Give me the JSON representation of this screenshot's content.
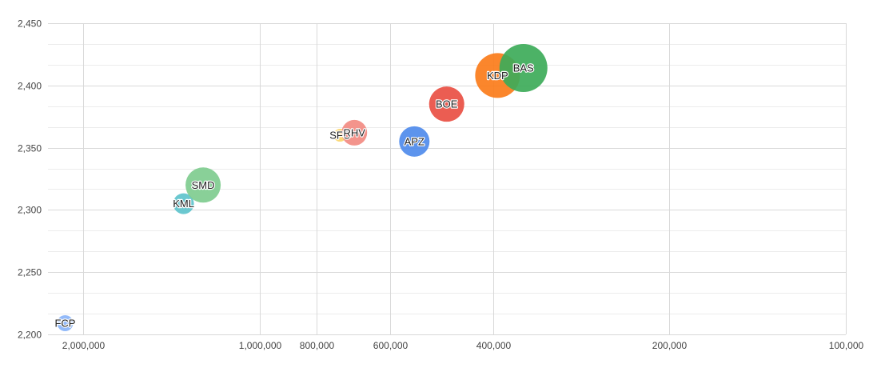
{
  "chart_data": {
    "type": "bubble",
    "title": "",
    "xlabel": "",
    "ylabel": "",
    "x_scale": "log",
    "x_reversed": true,
    "xlim": [
      2300000,
      100000
    ],
    "ylim": [
      2200,
      2450
    ],
    "x_ticks": [
      {
        "value": 2000000,
        "label": "2,000,000"
      },
      {
        "value": 1000000,
        "label": "1,000,000"
      },
      {
        "value": 800000,
        "label": "800,000"
      },
      {
        "value": 600000,
        "label": "600,000"
      },
      {
        "value": 400000,
        "label": "400,000"
      },
      {
        "value": 200000,
        "label": "200,000"
      },
      {
        "value": 100000,
        "label": "100,000"
      }
    ],
    "y_ticks": [
      {
        "value": 2200,
        "label": "2,200"
      },
      {
        "value": 2250,
        "label": "2,250"
      },
      {
        "value": 2300,
        "label": "2,300"
      },
      {
        "value": 2350,
        "label": "2,350"
      },
      {
        "value": 2400,
        "label": "2,400"
      },
      {
        "value": 2450,
        "label": "2,450"
      }
    ],
    "y_minor_ticks": [
      2216.7,
      2233.3,
      2266.7,
      2283.3,
      2316.7,
      2333.3,
      2366.7,
      2383.3,
      2416.7,
      2433.3
    ],
    "grid": true,
    "legend": "none",
    "points": [
      {
        "label": "FCP",
        "x": 2150000,
        "y": 2209,
        "size": 10,
        "color": "#8ab4f8"
      },
      {
        "label": "KML",
        "x": 1350000,
        "y": 2305,
        "size": 13,
        "color": "#5ec3cc"
      },
      {
        "label": "SMD",
        "x": 1250000,
        "y": 2320,
        "size": 22,
        "color": "#7fcc8f"
      },
      {
        "label": "SFC",
        "x": 730000,
        "y": 2360,
        "size": 8,
        "color": "#fbd66d"
      },
      {
        "label": "RHV",
        "x": 690000,
        "y": 2362,
        "size": 16,
        "color": "#f28b82"
      },
      {
        "label": "APZ",
        "x": 545000,
        "y": 2355,
        "size": 19,
        "color": "#4f8bec"
      },
      {
        "label": "BOE",
        "x": 480000,
        "y": 2385,
        "size": 22,
        "color": "#e94f43"
      },
      {
        "label": "KDP",
        "x": 393000,
        "y": 2408,
        "size": 28,
        "color": "#fb7c1a"
      },
      {
        "label": "BAS",
        "x": 355000,
        "y": 2414,
        "size": 30,
        "color": "#3dab59"
      }
    ]
  }
}
